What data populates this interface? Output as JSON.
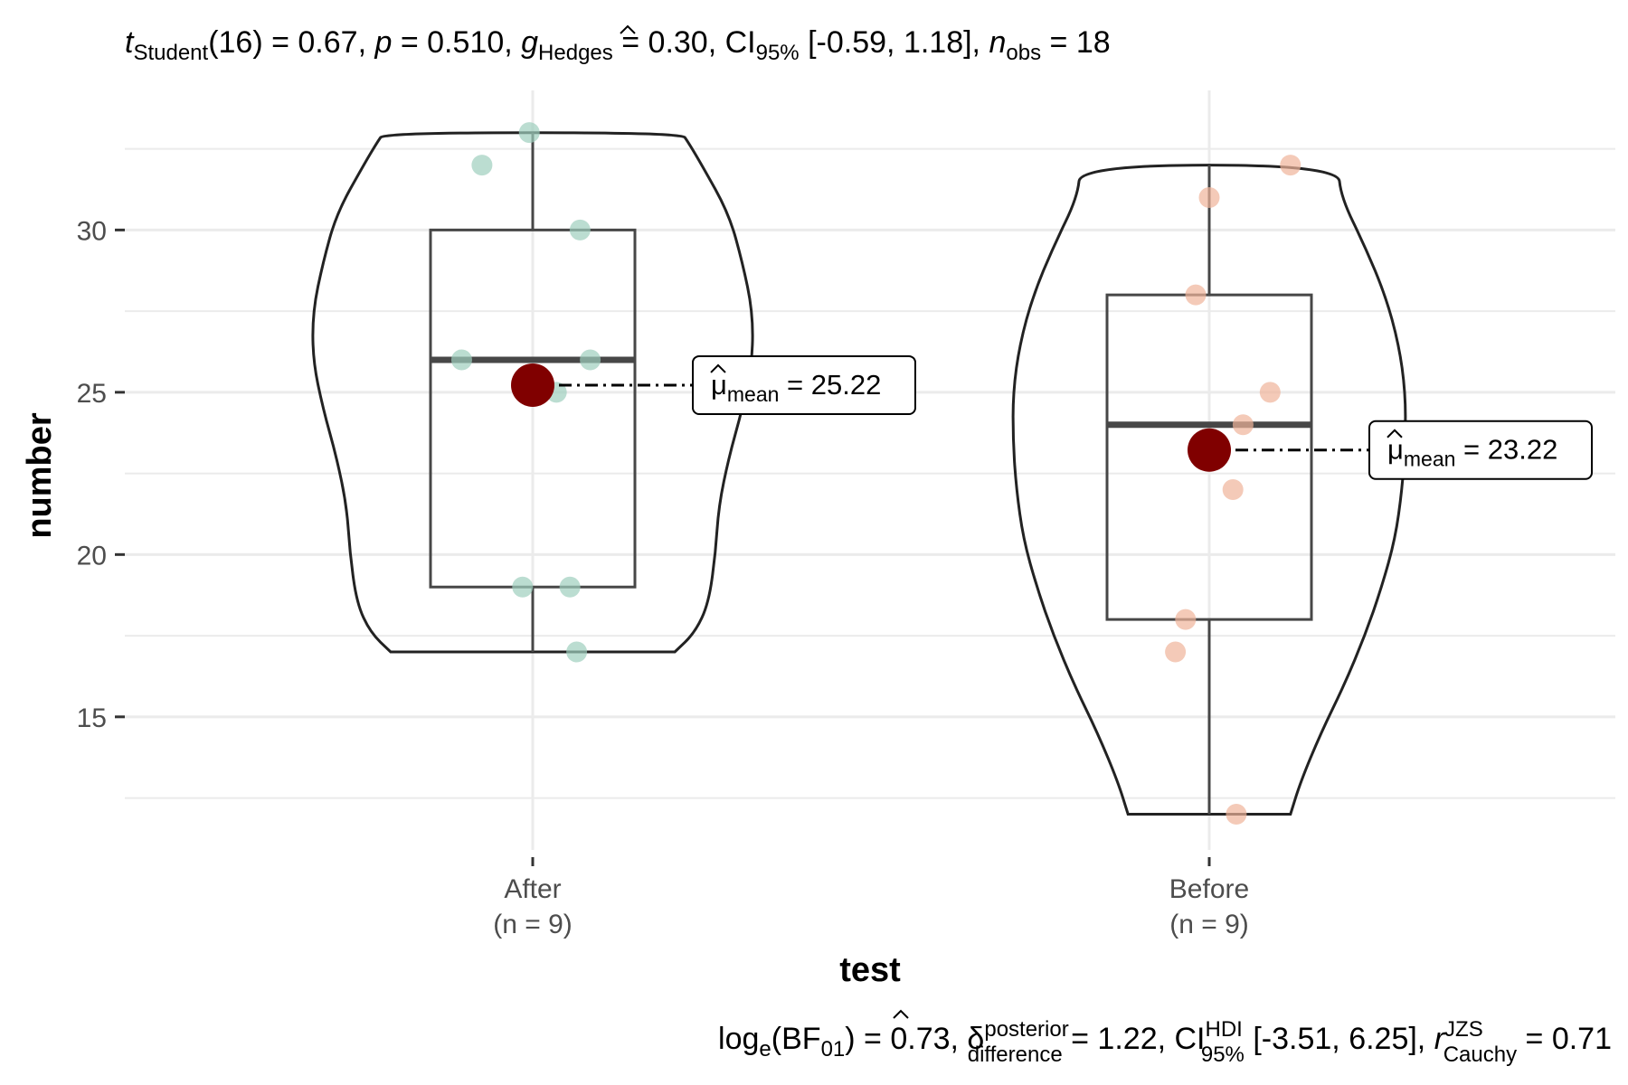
{
  "colors": {
    "after_points": "#9ecfbd",
    "before_points": "#efb49a",
    "mean_point": "#800000",
    "grid": "#ebebeb",
    "box": "#474747",
    "violin": "#222222"
  },
  "subtitle": {
    "stat": "t",
    "stat_sub": "Student",
    "df": "(16) = 0.67, ",
    "p_sym": "p",
    "p_val": " = 0.510, ",
    "g_sym": "g",
    "g_sub": "Hedges",
    "g_val": " = 0.30, CI",
    "ci_sub": "95%",
    "ci_val": " [-0.59, 1.18], ",
    "n_sym": "n",
    "n_sub": "obs",
    "n_val": " = 18"
  },
  "caption": {
    "bf": "log",
    "bf_sub": "e",
    "bf_mid": "(BF",
    "bf_sub2": "01",
    "bf_val": ") = 0.73, ",
    "delta": "δ",
    "delta_sup": "posterior",
    "delta_sub": "difference",
    "delta_val": " = 1.22, CI",
    "hdi_sup": "HDI",
    "hdi_sub": "95%",
    "hdi_val": " [-3.51, 6.25], ",
    "r_sym": "r",
    "r_sup": "JZS",
    "r_sub": "Cauchy",
    "r_val": " = 0.71"
  },
  "chart_data": {
    "type": "violin-box",
    "xlabel": "test",
    "ylabel": "number",
    "yticks": [
      15,
      20,
      25,
      30
    ],
    "ylim": [
      10.9,
      34.3
    ],
    "grid": true,
    "groups": [
      {
        "name": "After",
        "n_label": "(n = 9)",
        "points": [
          33,
          32,
          30,
          26,
          26,
          25,
          19,
          19,
          17
        ],
        "jitter": [
          -0.01,
          -0.15,
          0.14,
          -0.21,
          0.17,
          0.07,
          -0.03,
          0.11,
          0.13
        ],
        "box": {
          "q1": 19,
          "median": 26,
          "q3": 30,
          "whisker_low": 17,
          "whisker_high": 33
        },
        "mean": 25.22,
        "mean_label": "mean",
        "mean_value": " = 25.22",
        "violin": [
          [
            17,
            0.42
          ],
          [
            17.6,
            0.48
          ],
          [
            18.5,
            0.52
          ],
          [
            20,
            0.54
          ],
          [
            21.5,
            0.55
          ],
          [
            23,
            0.58
          ],
          [
            24.5,
            0.62
          ],
          [
            26,
            0.65
          ],
          [
            27.5,
            0.65
          ],
          [
            29,
            0.62
          ],
          [
            30.5,
            0.58
          ],
          [
            32,
            0.5
          ],
          [
            32.7,
            0.46
          ],
          [
            33,
            0.44
          ]
        ]
      },
      {
        "name": "Before",
        "n_label": "(n = 9)",
        "points": [
          32,
          31,
          28,
          25,
          24,
          22,
          18,
          17,
          12
        ],
        "jitter": [
          0.24,
          0.0,
          -0.04,
          0.18,
          0.1,
          0.07,
          -0.07,
          -0.1,
          0.08
        ],
        "box": {
          "q1": 18,
          "median": 24,
          "q3": 28,
          "whisker_low": 12,
          "whisker_high": 32
        },
        "mean": 23.22,
        "mean_label": "mean",
        "mean_value": " = 23.22",
        "violin": [
          [
            12,
            0.24
          ],
          [
            13,
            0.27
          ],
          [
            14.5,
            0.33
          ],
          [
            16,
            0.4
          ],
          [
            17.5,
            0.46
          ],
          [
            19,
            0.51
          ],
          [
            20.5,
            0.55
          ],
          [
            22,
            0.57
          ],
          [
            23.5,
            0.58
          ],
          [
            25,
            0.58
          ],
          [
            26.5,
            0.56
          ],
          [
            28,
            0.52
          ],
          [
            29.5,
            0.46
          ],
          [
            31,
            0.39
          ],
          [
            32,
            0.38
          ]
        ]
      }
    ]
  }
}
